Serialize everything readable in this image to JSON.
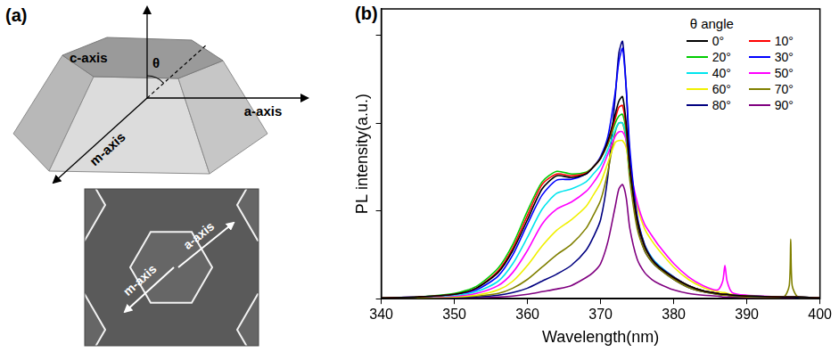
{
  "panel_a": {
    "panel_label": "(a)",
    "diagram": {
      "c_axis": "c-axis",
      "angle": "θ",
      "m_axis": "m-axis",
      "a_axis": "a-axis"
    },
    "sem_image": {
      "m_axis": "m-axis",
      "a_axis": "a-axis"
    }
  },
  "chart_data": {
    "panel_label": "(b)",
    "type": "line",
    "x_label": "Wavelength(nm)",
    "y_label": "PL intensity(a.u.)",
    "legend_title": "θ angle",
    "legend": "upper right",
    "grid": false,
    "tick_labels": "x",
    "xlim": [
      340,
      400
    ],
    "xticks": [
      340,
      350,
      360,
      370,
      380,
      390,
      400
    ],
    "ylim": [
      0,
      3.3
    ],
    "yticks": [
      0,
      1,
      2,
      3
    ],
    "x": [
      340,
      345,
      350,
      353,
      356,
      358,
      360,
      362,
      364,
      366,
      368,
      369,
      370,
      371,
      372,
      372.5,
      373,
      373.5,
      374,
      375,
      376,
      377,
      378,
      380,
      382,
      384,
      386,
      386.7,
      387,
      387.3,
      388,
      390,
      395,
      395.8,
      396,
      396.2,
      397,
      400
    ],
    "series": [
      {
        "name": "0°",
        "color": "#000000",
        "values": [
          0.01,
          0.02,
          0.05,
          0.12,
          0.3,
          0.55,
          0.9,
          1.25,
          1.4,
          1.38,
          1.42,
          1.5,
          1.6,
          1.8,
          2.1,
          2.25,
          2.3,
          2.0,
          1.5,
          0.9,
          0.6,
          0.45,
          0.36,
          0.24,
          0.15,
          0.09,
          0.06,
          0.05,
          0.05,
          0.05,
          0.04,
          0.03,
          0.02,
          0.02,
          0.02,
          0.02,
          0.02,
          0.01
        ]
      },
      {
        "name": "10°",
        "color": "#ff0000",
        "values": [
          0.01,
          0.02,
          0.05,
          0.12,
          0.32,
          0.58,
          0.95,
          1.3,
          1.42,
          1.4,
          1.43,
          1.5,
          1.6,
          1.78,
          2.05,
          2.18,
          2.2,
          1.95,
          1.48,
          0.9,
          0.6,
          0.45,
          0.36,
          0.24,
          0.15,
          0.09,
          0.06,
          0.05,
          0.05,
          0.05,
          0.04,
          0.03,
          0.02,
          0.02,
          0.02,
          0.02,
          0.02,
          0.01
        ]
      },
      {
        "name": "20°",
        "color": "#00cc00",
        "values": [
          0.01,
          0.02,
          0.06,
          0.14,
          0.35,
          0.62,
          1.0,
          1.33,
          1.45,
          1.42,
          1.44,
          1.5,
          1.6,
          1.76,
          2.0,
          2.08,
          2.1,
          1.9,
          1.45,
          0.9,
          0.6,
          0.45,
          0.36,
          0.24,
          0.15,
          0.09,
          0.06,
          0.05,
          0.05,
          0.05,
          0.04,
          0.03,
          0.02,
          0.02,
          0.02,
          0.02,
          0.02,
          0.01
        ]
      },
      {
        "name": "30°",
        "color": "#0000ff",
        "values": [
          0.01,
          0.02,
          0.05,
          0.1,
          0.26,
          0.5,
          0.85,
          1.18,
          1.35,
          1.36,
          1.42,
          1.5,
          1.62,
          1.85,
          2.35,
          2.7,
          2.85,
          2.4,
          1.7,
          0.95,
          0.62,
          0.46,
          0.37,
          0.25,
          0.15,
          0.09,
          0.06,
          0.05,
          0.05,
          0.05,
          0.04,
          0.03,
          0.02,
          0.02,
          0.02,
          0.02,
          0.02,
          0.01
        ]
      },
      {
        "name": "40°",
        "color": "#00e5ee",
        "values": [
          0.01,
          0.02,
          0.04,
          0.08,
          0.2,
          0.4,
          0.7,
          1.02,
          1.2,
          1.25,
          1.33,
          1.42,
          1.52,
          1.7,
          1.92,
          2.0,
          2.0,
          1.85,
          1.45,
          0.92,
          0.62,
          0.47,
          0.38,
          0.25,
          0.15,
          0.09,
          0.06,
          0.05,
          0.05,
          0.05,
          0.04,
          0.03,
          0.02,
          0.02,
          0.02,
          0.02,
          0.02,
          0.01
        ]
      },
      {
        "name": "50°",
        "color": "#ff00ff",
        "values": [
          0.01,
          0.02,
          0.03,
          0.06,
          0.15,
          0.3,
          0.55,
          0.85,
          1.02,
          1.1,
          1.22,
          1.32,
          1.45,
          1.65,
          1.85,
          1.9,
          1.9,
          1.8,
          1.5,
          1.1,
          0.85,
          0.72,
          0.6,
          0.4,
          0.25,
          0.15,
          0.1,
          0.2,
          0.38,
          0.2,
          0.07,
          0.04,
          0.02,
          0.02,
          0.02,
          0.02,
          0.02,
          0.01
        ]
      },
      {
        "name": "60°",
        "color": "#f0f000",
        "values": [
          0.01,
          0.01,
          0.02,
          0.04,
          0.1,
          0.2,
          0.38,
          0.6,
          0.78,
          0.9,
          1.05,
          1.18,
          1.32,
          1.55,
          1.78,
          1.8,
          1.8,
          1.72,
          1.45,
          1.05,
          0.8,
          0.66,
          0.55,
          0.36,
          0.22,
          0.13,
          0.08,
          0.07,
          0.07,
          0.06,
          0.05,
          0.03,
          0.02,
          0.02,
          0.02,
          0.02,
          0.02,
          0.01
        ]
      },
      {
        "name": "70°",
        "color": "#808000",
        "values": [
          0.01,
          0.01,
          0.02,
          0.03,
          0.06,
          0.12,
          0.22,
          0.36,
          0.5,
          0.62,
          0.8,
          0.95,
          1.12,
          1.45,
          1.9,
          2.0,
          2.0,
          1.8,
          1.35,
          0.8,
          0.55,
          0.42,
          0.34,
          0.22,
          0.13,
          0.08,
          0.05,
          0.04,
          0.04,
          0.04,
          0.03,
          0.02,
          0.02,
          0.15,
          0.68,
          0.15,
          0.02,
          0.01
        ]
      },
      {
        "name": "80°",
        "color": "#000080",
        "values": [
          0.01,
          0.01,
          0.01,
          0.02,
          0.04,
          0.07,
          0.12,
          0.2,
          0.28,
          0.38,
          0.55,
          0.7,
          0.9,
          1.4,
          2.3,
          2.8,
          2.93,
          2.4,
          1.6,
          0.85,
          0.55,
          0.42,
          0.34,
          0.22,
          0.13,
          0.08,
          0.05,
          0.04,
          0.04,
          0.04,
          0.03,
          0.02,
          0.02,
          0.02,
          0.02,
          0.02,
          0.01,
          0.01
        ]
      },
      {
        "name": "90°",
        "color": "#800080",
        "values": [
          0.01,
          0.01,
          0.01,
          0.01,
          0.02,
          0.03,
          0.05,
          0.08,
          0.11,
          0.15,
          0.24,
          0.3,
          0.4,
          0.65,
          1.05,
          1.25,
          1.3,
          1.15,
          0.8,
          0.45,
          0.3,
          0.22,
          0.17,
          0.1,
          0.06,
          0.04,
          0.03,
          0.02,
          0.02,
          0.02,
          0.02,
          0.01,
          0.01,
          0.01,
          0.01,
          0.01,
          0.01,
          0.01
        ]
      }
    ]
  }
}
